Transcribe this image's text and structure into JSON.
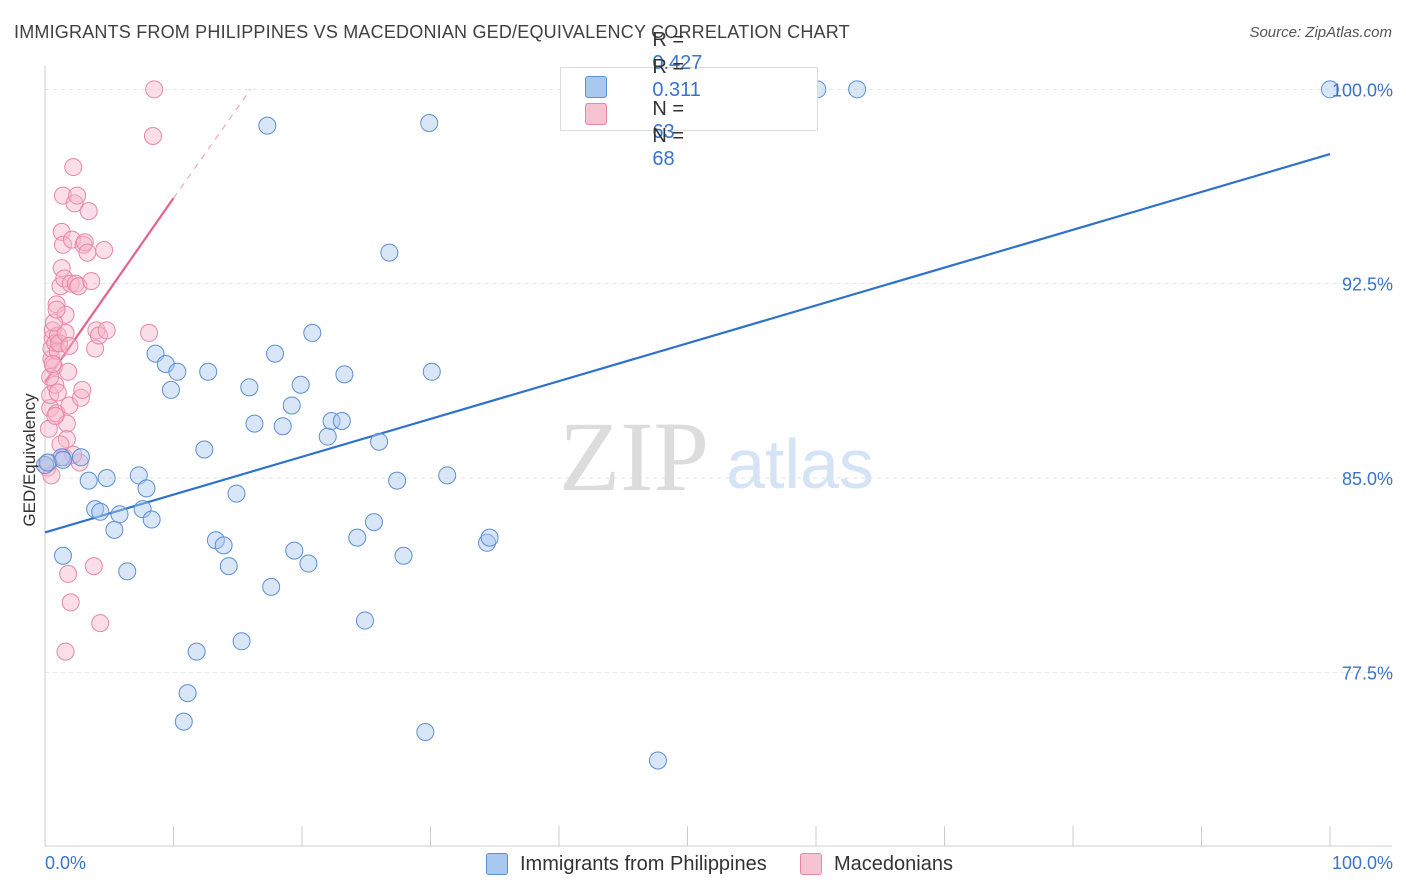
{
  "title": "IMMIGRANTS FROM PHILIPPINES VS MACEDONIAN GED/EQUIVALENCY CORRELATION CHART",
  "source": "Source: ZipAtlas.com",
  "watermark": {
    "zip": "ZIP",
    "atlas": "atlas"
  },
  "colors": {
    "blue_fill": "#a9c8ef",
    "blue_stroke": "#5b8fd6",
    "blue_line": "#2f72cc",
    "pink_fill": "#f6b6ca",
    "pink_stroke": "#e886a6",
    "pink_line": "#e4628c",
    "axis_text": "#3a73c9",
    "grid": "#e3e3e3"
  },
  "legend_stats": [
    {
      "r_label": "R =",
      "r_value": "0.427",
      "n_label": "N =",
      "n_value": "63"
    },
    {
      "r_label": "R =",
      "r_value": "0.311",
      "n_label": "N =",
      "n_value": "68"
    }
  ],
  "chart_data": {
    "type": "scatter",
    "title": "IMMIGRANTS FROM PHILIPPINES VS MACEDONIAN GED/EQUIVALENCY CORRELATION CHART",
    "xlabel": "",
    "ylabel": "GED/Equivalency",
    "xlim": [
      0,
      100
    ],
    "ylim": [
      70.8,
      100.9
    ],
    "x_tick_labels": [
      "0.0%",
      "100.0%"
    ],
    "y_ticks": [
      77.5,
      85.0,
      92.5,
      100.0
    ],
    "y_tick_labels": [
      "77.5%",
      "85.0%",
      "92.5%",
      "100.0%"
    ],
    "grid": true,
    "legend_position": "bottom",
    "series": [
      {
        "name": "Immigrants from Philippines",
        "color": "blue",
        "trend": {
          "x0": 0,
          "y0": 82.9,
          "x1": 100,
          "y1": 97.5
        },
        "points": [
          [
            0,
            85.5
          ],
          [
            1.3,
            85.8
          ],
          [
            2.8,
            85.8
          ],
          [
            1.4,
            85.7
          ],
          [
            1.4,
            82.0
          ],
          [
            3.4,
            84.9
          ],
          [
            3.9,
            83.8
          ],
          [
            4.3,
            83.7
          ],
          [
            4.8,
            85.0
          ],
          [
            5.4,
            83.0
          ],
          [
            5.8,
            83.6
          ],
          [
            6.4,
            81.4
          ],
          [
            7.3,
            85.1
          ],
          [
            7.6,
            83.8
          ],
          [
            7.9,
            84.6
          ],
          [
            8.3,
            83.4
          ],
          [
            8.6,
            89.8
          ],
          [
            9.4,
            89.4
          ],
          [
            9.8,
            88.4
          ],
          [
            10.3,
            89.1
          ],
          [
            10.8,
            75.6
          ],
          [
            11.1,
            76.7
          ],
          [
            11.8,
            78.3
          ],
          [
            12.4,
            86.1
          ],
          [
            12.7,
            89.1
          ],
          [
            13.3,
            82.6
          ],
          [
            13.9,
            82.4
          ],
          [
            14.3,
            81.6
          ],
          [
            14.9,
            84.4
          ],
          [
            15.3,
            78.7
          ],
          [
            15.9,
            88.5
          ],
          [
            16.3,
            87.1
          ],
          [
            17.3,
            98.6
          ],
          [
            17.6,
            80.8
          ],
          [
            17.9,
            89.8
          ],
          [
            18.5,
            87.0
          ],
          [
            19.2,
            87.8
          ],
          [
            19.4,
            82.2
          ],
          [
            19.9,
            88.6
          ],
          [
            20.5,
            81.7
          ],
          [
            20.8,
            90.6
          ],
          [
            22.0,
            86.6
          ],
          [
            22.3,
            87.2
          ],
          [
            23.1,
            87.2
          ],
          [
            23.3,
            89.0
          ],
          [
            24.3,
            82.7
          ],
          [
            24.9,
            79.5
          ],
          [
            25.6,
            83.3
          ],
          [
            26.0,
            86.4
          ],
          [
            26.8,
            93.7
          ],
          [
            27.4,
            84.9
          ],
          [
            27.9,
            82.0
          ],
          [
            29.6,
            75.2
          ],
          [
            29.9,
            98.7
          ],
          [
            30.1,
            89.1
          ],
          [
            31.3,
            85.1
          ],
          [
            34.4,
            82.5
          ],
          [
            34.6,
            82.7
          ],
          [
            47.7,
            74.1
          ],
          [
            60.1,
            100.0
          ],
          [
            63.2,
            100.0
          ],
          [
            100.0,
            100.0
          ],
          [
            0.2,
            85.6
          ]
        ]
      },
      {
        "name": "Macedonians",
        "color": "pink",
        "trend": {
          "x0": 0,
          "y0": 88.7,
          "x1": 10,
          "y1": 95.8,
          "dash_to_x": 16,
          "dash_to_y": 100.0
        },
        "points": [
          [
            0.2,
            85.4
          ],
          [
            0.3,
            85.6
          ],
          [
            0.4,
            87.7
          ],
          [
            0.4,
            88.2
          ],
          [
            0.5,
            89.6
          ],
          [
            0.5,
            90.0
          ],
          [
            0.6,
            90.4
          ],
          [
            0.6,
            90.7
          ],
          [
            0.7,
            89.3
          ],
          [
            0.8,
            90.2
          ],
          [
            0.8,
            88.6
          ],
          [
            0.9,
            91.7
          ],
          [
            0.9,
            87.5
          ],
          [
            1.0,
            89.9
          ],
          [
            1.0,
            90.5
          ],
          [
            1.1,
            90.2
          ],
          [
            1.2,
            92.4
          ],
          [
            1.3,
            93.1
          ],
          [
            1.3,
            94.5
          ],
          [
            1.4,
            94.0
          ],
          [
            1.4,
            95.9
          ],
          [
            1.5,
            92.7
          ],
          [
            1.6,
            91.3
          ],
          [
            1.6,
            90.6
          ],
          [
            1.7,
            87.1
          ],
          [
            1.7,
            86.5
          ],
          [
            1.8,
            89.1
          ],
          [
            1.8,
            81.3
          ],
          [
            1.9,
            87.8
          ],
          [
            2.0,
            92.5
          ],
          [
            2.1,
            94.2
          ],
          [
            2.2,
            97.0
          ],
          [
            2.3,
            95.6
          ],
          [
            2.4,
            92.5
          ],
          [
            2.5,
            95.9
          ],
          [
            2.6,
            92.4
          ],
          [
            2.7,
            85.6
          ],
          [
            2.8,
            88.1
          ],
          [
            2.9,
            88.4
          ],
          [
            3.0,
            94.0
          ],
          [
            3.1,
            94.1
          ],
          [
            3.3,
            93.7
          ],
          [
            3.4,
            95.3
          ],
          [
            3.6,
            92.6
          ],
          [
            3.8,
            81.6
          ],
          [
            3.9,
            90.0
          ],
          [
            4.0,
            90.7
          ],
          [
            4.2,
            90.5
          ],
          [
            4.3,
            79.4
          ],
          [
            4.6,
            93.8
          ],
          [
            4.8,
            90.7
          ],
          [
            8.1,
            90.6
          ],
          [
            8.4,
            98.2
          ],
          [
            8.5,
            100.0
          ],
          [
            2.0,
            80.2
          ],
          [
            1.6,
            78.3
          ],
          [
            0.3,
            86.9
          ],
          [
            0.4,
            88.9
          ],
          [
            0.6,
            89.4
          ],
          [
            0.8,
            87.4
          ],
          [
            1.2,
            86.3
          ],
          [
            1.5,
            85.8
          ],
          [
            2.2,
            85.9
          ],
          [
            0.7,
            91.0
          ],
          [
            1.0,
            88.3
          ],
          [
            1.9,
            90.1
          ],
          [
            0.9,
            91.5
          ],
          [
            0.5,
            85.1
          ]
        ]
      }
    ]
  }
}
